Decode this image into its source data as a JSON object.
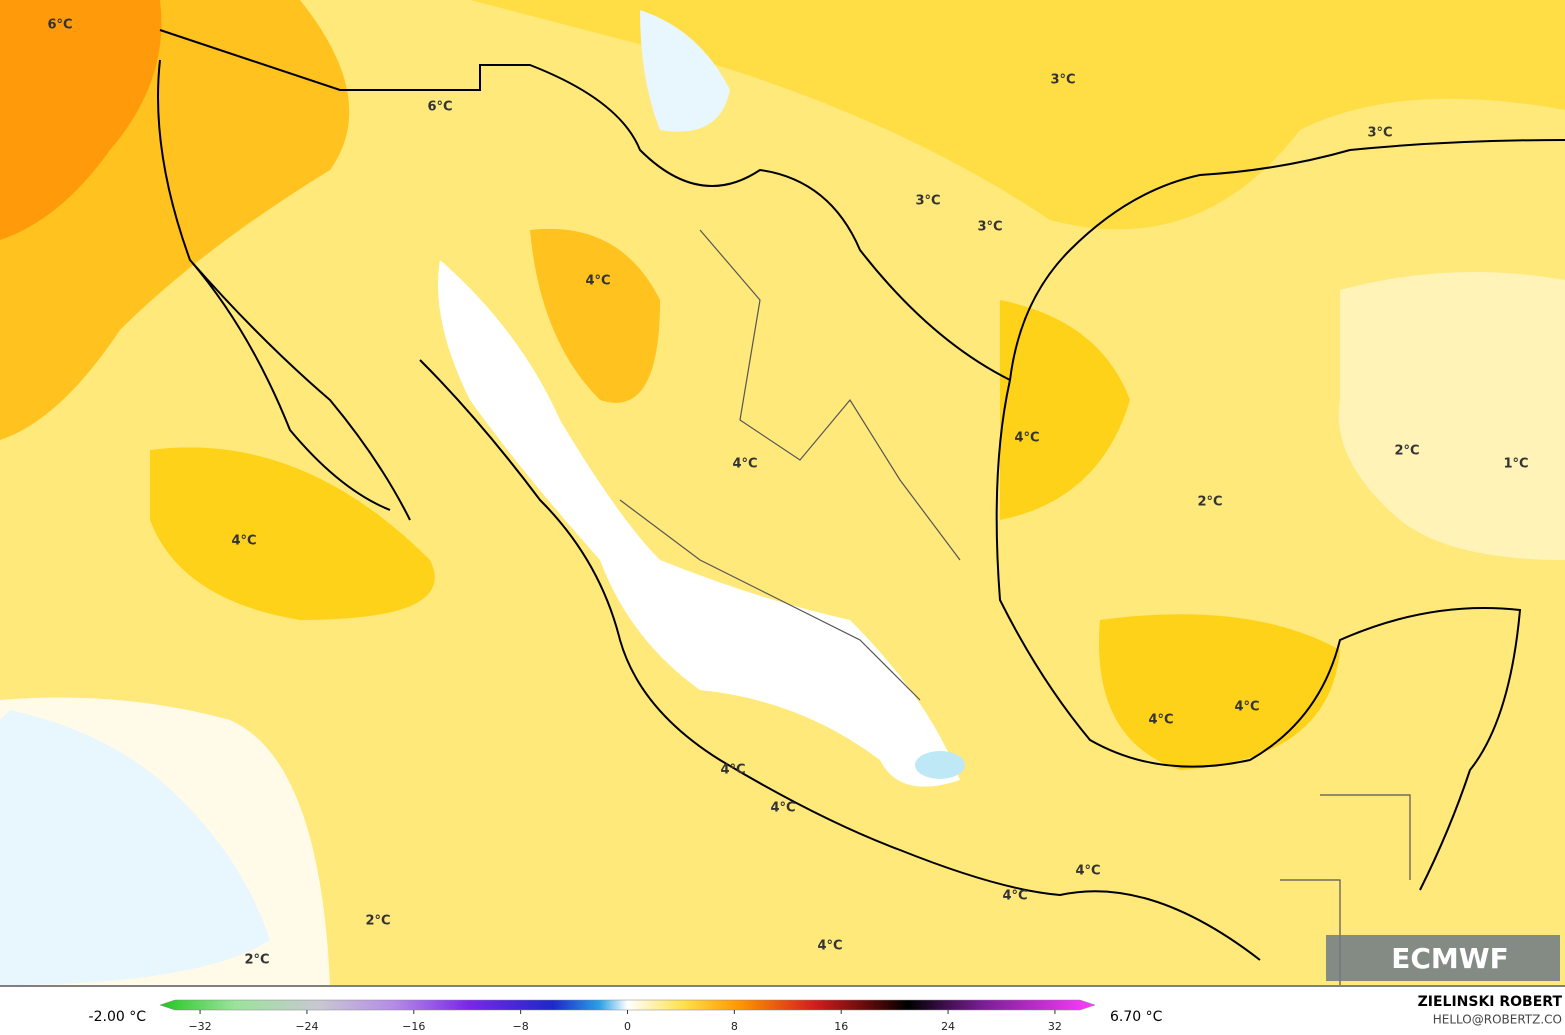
{
  "map": {
    "labels": [
      "6°C",
      "6°C",
      "3°C",
      "3°C",
      "3°C",
      "3°C",
      "4°C",
      "4°C",
      "4°C",
      "2°C",
      "1°C",
      "2°C",
      "4°C",
      "4°C",
      "4°C",
      "4°C",
      "4°C",
      "4°C",
      "4°C",
      "2°C",
      "4°C",
      "2°C"
    ],
    "logo": "ECMWF"
  },
  "legend": {
    "min_label": "-2.00 °C",
    "max_label": "6.70 °C",
    "range": [
      -35,
      35
    ],
    "ticks": [
      {
        "value": -32,
        "label": "−32"
      },
      {
        "value": -24,
        "label": "−24"
      },
      {
        "value": -16,
        "label": "−16"
      },
      {
        "value": -8,
        "label": "−8"
      },
      0,
      8,
      16,
      24,
      32
    ]
  },
  "credit": {
    "author": "ZIELINSKI ROBERT",
    "contact": "HELLO@ROBERTZ.CO"
  }
}
